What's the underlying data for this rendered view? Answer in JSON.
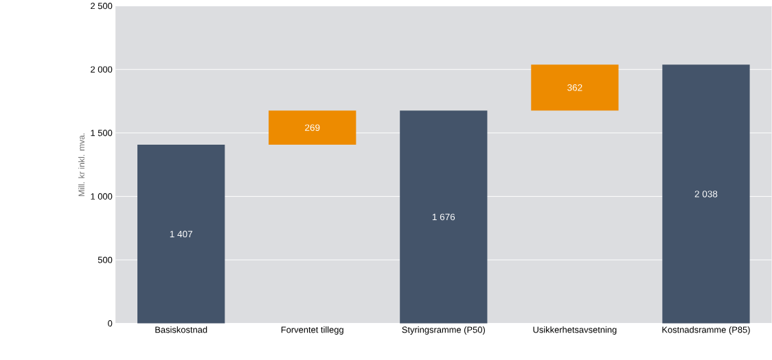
{
  "chart_data": {
    "type": "bar",
    "ylabel": "Mill. kr inkl. mva.",
    "categories": [
      "Basiskostnad",
      "Forventet tillegg",
      "Styringsramme (P50)",
      "Usikkerhetsavsetning",
      "Kostnadsramme (P85)"
    ],
    "values": [
      1407,
      269,
      1676,
      362,
      2038
    ],
    "base": [
      0,
      1407,
      0,
      1676,
      0
    ],
    "colors": [
      "#44546a",
      "#ed8b00",
      "#44546a",
      "#ed8b00",
      "#44546a"
    ],
    "value_labels": [
      "1 407",
      "269",
      "1 676",
      "362",
      "2 038"
    ],
    "ylim": [
      0,
      2500
    ],
    "yticks": [
      0,
      500,
      {
        "value": 1000,
        "label": "1 000"
      },
      {
        "value": 1500,
        "label": "1 500"
      },
      {
        "value": 2000,
        "label": "2 000"
      },
      {
        "value": 2500,
        "label": "2 500"
      }
    ],
    "grid": "y"
  }
}
